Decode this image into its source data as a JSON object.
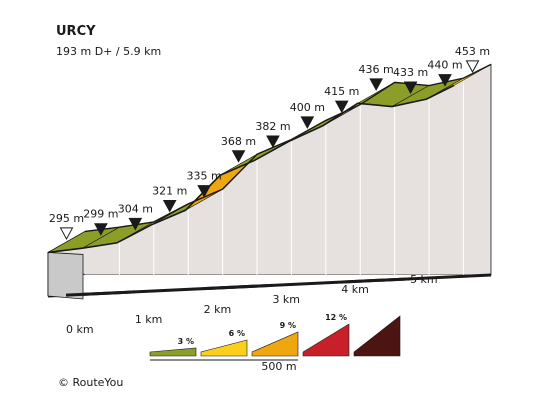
{
  "title": "URCY",
  "subtitle": "193 m D+ / 5.9 km",
  "credit": "© RouteYou",
  "chart_data": {
    "type": "area",
    "title": "URCY",
    "subtitle": "193 m D+ / 5.9 km",
    "xlabel": "",
    "ylabel": "",
    "x_unit": "km",
    "y_unit": "m",
    "x_ticks": [
      "0 km",
      "1 km",
      "2 km",
      "3 km",
      "4 km",
      "5 km"
    ],
    "x_tick_values": [
      0,
      1,
      2,
      3,
      4,
      5
    ],
    "points": [
      {
        "km": 0.0,
        "elev": 295,
        "label": "295 m"
      },
      {
        "km": 0.5,
        "elev": 299,
        "label": "299 m"
      },
      {
        "km": 1.0,
        "elev": 304,
        "label": "304 m"
      },
      {
        "km": 1.5,
        "elev": 321,
        "label": "321 m"
      },
      {
        "km": 2.0,
        "elev": 335,
        "label": "335 m"
      },
      {
        "km": 2.5,
        "elev": 368,
        "label": "368 m"
      },
      {
        "km": 3.0,
        "elev": 382,
        "label": "382 m"
      },
      {
        "km": 3.5,
        "elev": 400,
        "label": "400 m"
      },
      {
        "km": 4.0,
        "elev": 415,
        "label": "415 m"
      },
      {
        "km": 4.5,
        "elev": 436,
        "label": "436 m"
      },
      {
        "km": 5.0,
        "elev": 433,
        "label": "433 m"
      },
      {
        "km": 5.5,
        "elev": 440,
        "label": "440 m"
      },
      {
        "km": 5.9,
        "elev": 453,
        "label": "453 m"
      }
    ],
    "segment_colors": [
      "#8c9e28",
      "#8c9e28",
      "#fbcf1c",
      "#8c9e28",
      "#eea70e",
      "#8c9e28",
      "#fbcf1c",
      "#8c9e28",
      "#fbcf1c",
      "#8c9e28",
      "#8c9e28",
      "#fbcf1c"
    ],
    "legend": {
      "items": [
        {
          "label": "3 %",
          "color": "#8c9e28"
        },
        {
          "label": "6 %",
          "color": "#fbcf1c"
        },
        {
          "label": "9 %",
          "color": "#eea70e"
        },
        {
          "label": "12 %",
          "color": "#c8202a"
        },
        {
          "label": "",
          "color": "#4d1512"
        }
      ],
      "scale_label": "500 m"
    }
  }
}
